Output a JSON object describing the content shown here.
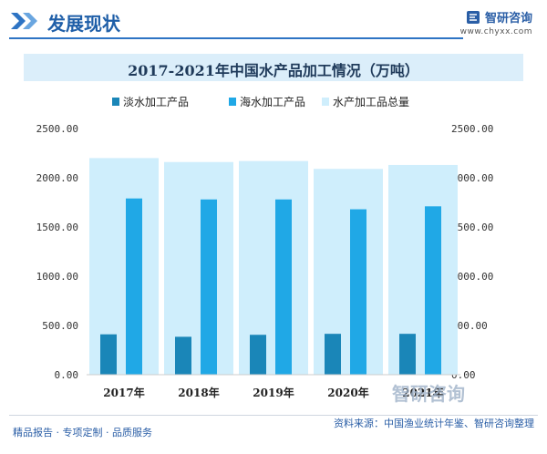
{
  "header": {
    "title": "发展现状",
    "brand_name": "智研咨询",
    "brand_url": "www.chyxx.com"
  },
  "chart_data": {
    "type": "bar",
    "title": "2017-2021年中国水产品加工情况（万吨）",
    "categories": [
      "2017年",
      "2018年",
      "2019年",
      "2020年",
      "2021年"
    ],
    "series": [
      {
        "name": "淡水加工产品",
        "values": [
          410,
          385,
          405,
          415,
          415
        ],
        "color": "#1a86b8"
      },
      {
        "name": "海水加工产品",
        "values": [
          1790,
          1780,
          1780,
          1680,
          1710
        ],
        "color": "#20a8e6"
      },
      {
        "name": "水产加工品总量",
        "values": [
          2200,
          2160,
          2170,
          2090,
          2130
        ],
        "color": "#cfeefc"
      }
    ],
    "y_ticks": [
      "0.00",
      "500.00",
      "1000.00",
      "1500.00",
      "2000.00",
      "2500.00"
    ],
    "ylim": [
      0,
      2500
    ],
    "legend_position": "top",
    "grid": false,
    "dual_axis_labels": true
  },
  "watermark": {
    "brand_text": "智研咨询"
  },
  "footer": {
    "left": "精品报告 · 专项定制 · 品质服务",
    "right": "资料来源：中国渔业统计年鉴、智研咨询整理"
  }
}
